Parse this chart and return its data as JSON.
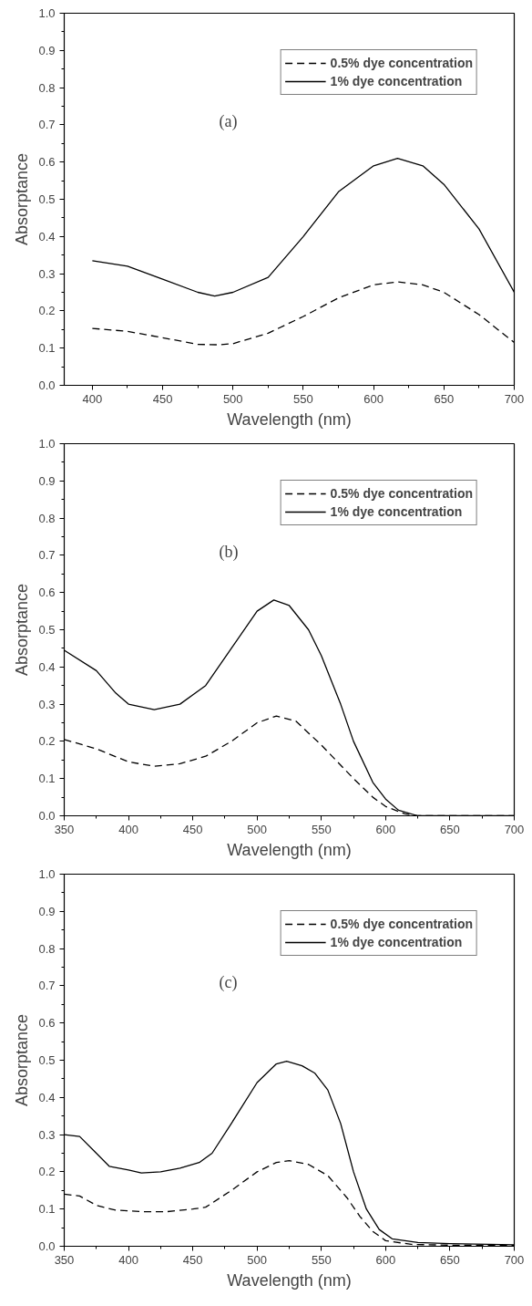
{
  "chart_data": [
    {
      "type": "line",
      "xlabel": "Wavelength (nm)",
      "ylabel": "Absorptance",
      "annotations": [
        "(a)"
      ],
      "legend": "top right",
      "grid": false,
      "xlim": [
        380,
        700
      ],
      "xticks": [
        400,
        {
          "value": 425,
          "label": null
        },
        450,
        {
          "value": 475,
          "label": null
        },
        500,
        {
          "value": 525,
          "label": null
        },
        550,
        {
          "value": 575,
          "label": null
        },
        600,
        {
          "value": 625,
          "label": null
        },
        650,
        {
          "value": 675,
          "label": null
        },
        700
      ],
      "ylim": [
        0,
        1
      ],
      "yticks": [
        {
          "value": 0,
          "label": "0.0"
        },
        {
          "value": 0.05,
          "label": null
        },
        0.1,
        {
          "value": 0.15,
          "label": null
        },
        0.2,
        {
          "value": 0.25,
          "label": null
        },
        0.3,
        {
          "value": 0.35,
          "label": null
        },
        0.4,
        {
          "value": 0.45,
          "label": null
        },
        0.5,
        {
          "value": 0.55,
          "label": null
        },
        0.6,
        {
          "value": 0.65,
          "label": null
        },
        0.7,
        {
          "value": 0.75,
          "label": null
        },
        0.8,
        {
          "value": 0.85,
          "label": null
        },
        0.9,
        {
          "value": 0.95,
          "label": null
        },
        {
          "value": 1,
          "label": "1.0"
        }
      ],
      "series": [
        {
          "name": "0.5% dye concentration",
          "color": "#000000",
          "line_style": "dashed",
          "x": [
            400,
            425,
            450,
            475,
            490,
            500,
            525,
            550,
            575,
            600,
            617,
            635,
            650,
            675,
            700
          ],
          "values": [
            0.153,
            0.145,
            0.128,
            0.11,
            0.109,
            0.112,
            0.14,
            0.185,
            0.235,
            0.27,
            0.278,
            0.27,
            0.25,
            0.19,
            0.115
          ]
        },
        {
          "name": "1% dye concentration",
          "color": "#000000",
          "line_style": "solid",
          "x": [
            400,
            425,
            450,
            475,
            487,
            500,
            525,
            550,
            575,
            600,
            617,
            635,
            650,
            675,
            700
          ],
          "values": [
            0.335,
            0.32,
            0.285,
            0.25,
            0.24,
            0.25,
            0.29,
            0.4,
            0.52,
            0.59,
            0.61,
            0.59,
            0.54,
            0.42,
            0.25
          ]
        }
      ]
    },
    {
      "type": "line",
      "xlabel": "Wavelength (nm)",
      "ylabel": "Absorptance",
      "annotations": [
        "(b)"
      ],
      "legend": "top right",
      "grid": false,
      "xlim": [
        350,
        700
      ],
      "xticks": [
        350,
        {
          "value": 375,
          "label": null
        },
        400,
        {
          "value": 425,
          "label": null
        },
        450,
        {
          "value": 475,
          "label": null
        },
        500,
        {
          "value": 525,
          "label": null
        },
        550,
        {
          "value": 575,
          "label": null
        },
        600,
        {
          "value": 625,
          "label": null
        },
        650,
        {
          "value": 675,
          "label": null
        },
        700
      ],
      "ylim": [
        0,
        1
      ],
      "yticks": [
        {
          "value": 0,
          "label": "0.0"
        },
        {
          "value": 0.05,
          "label": null
        },
        0.1,
        {
          "value": 0.15,
          "label": null
        },
        0.2,
        {
          "value": 0.25,
          "label": null
        },
        0.3,
        {
          "value": 0.35,
          "label": null
        },
        0.4,
        {
          "value": 0.45,
          "label": null
        },
        0.5,
        {
          "value": 0.55,
          "label": null
        },
        0.6,
        {
          "value": 0.65,
          "label": null
        },
        0.7,
        {
          "value": 0.75,
          "label": null
        },
        0.8,
        {
          "value": 0.85,
          "label": null
        },
        0.9,
        {
          "value": 0.95,
          "label": null
        },
        {
          "value": 1,
          "label": "1.0"
        }
      ],
      "series": [
        {
          "name": "0.5% dye concentration",
          "color": "#000000",
          "line_style": "dashed",
          "x": [
            350,
            375,
            400,
            420,
            440,
            460,
            480,
            500,
            515,
            530,
            550,
            575,
            590,
            600,
            615,
            625,
            700
          ],
          "values": [
            0.205,
            0.18,
            0.145,
            0.133,
            0.14,
            0.16,
            0.2,
            0.25,
            0.268,
            0.255,
            0.19,
            0.1,
            0.05,
            0.025,
            0.005,
            0.0,
            0.0
          ]
        },
        {
          "name": "1% dye concentration",
          "color": "#000000",
          "line_style": "solid",
          "x": [
            350,
            375,
            390,
            400,
            420,
            440,
            460,
            480,
            500,
            513,
            525,
            540,
            550,
            565,
            575,
            590,
            600,
            610,
            625,
            650,
            700
          ],
          "values": [
            0.445,
            0.39,
            0.33,
            0.3,
            0.285,
            0.3,
            0.35,
            0.45,
            0.55,
            0.58,
            0.565,
            0.5,
            0.43,
            0.3,
            0.2,
            0.09,
            0.045,
            0.015,
            0.0,
            0.0,
            0.0
          ]
        }
      ]
    },
    {
      "type": "line",
      "xlabel": "Wavelength (nm)",
      "ylabel": "Absorptance",
      "annotations": [
        "(c)"
      ],
      "legend": "top right",
      "grid": false,
      "xlim": [
        350,
        700
      ],
      "xticks": [
        350,
        {
          "value": 375,
          "label": null
        },
        400,
        {
          "value": 425,
          "label": null
        },
        450,
        {
          "value": 475,
          "label": null
        },
        500,
        {
          "value": 525,
          "label": null
        },
        550,
        {
          "value": 575,
          "label": null
        },
        600,
        {
          "value": 625,
          "label": null
        },
        650,
        {
          "value": 675,
          "label": null
        },
        700
      ],
      "ylim": [
        0,
        1
      ],
      "yticks": [
        {
          "value": 0,
          "label": "0.0"
        },
        {
          "value": 0.05,
          "label": null
        },
        0.1,
        {
          "value": 0.15,
          "label": null
        },
        0.2,
        {
          "value": 0.25,
          "label": null
        },
        0.3,
        {
          "value": 0.35,
          "label": null
        },
        0.4,
        {
          "value": 0.45,
          "label": null
        },
        0.5,
        {
          "value": 0.55,
          "label": null
        },
        0.6,
        {
          "value": 0.65,
          "label": null
        },
        0.7,
        {
          "value": 0.75,
          "label": null
        },
        0.8,
        {
          "value": 0.85,
          "label": null
        },
        0.9,
        {
          "value": 0.95,
          "label": null
        },
        {
          "value": 1,
          "label": "1.0"
        }
      ],
      "series": [
        {
          "name": "0.5% dye concentration",
          "color": "#000000",
          "line_style": "dashed",
          "x": [
            350,
            362,
            375,
            390,
            410,
            430,
            450,
            460,
            480,
            500,
            515,
            525,
            540,
            555,
            570,
            580,
            590,
            600,
            620,
            650,
            700
          ],
          "values": [
            0.14,
            0.135,
            0.11,
            0.097,
            0.093,
            0.093,
            0.1,
            0.105,
            0.15,
            0.2,
            0.225,
            0.23,
            0.22,
            0.19,
            0.13,
            0.08,
            0.04,
            0.015,
            0.005,
            0.003,
            0.002
          ]
        },
        {
          "name": "1% dye concentration",
          "color": "#000000",
          "line_style": "solid",
          "x": [
            350,
            362,
            375,
            385,
            400,
            410,
            425,
            440,
            455,
            465,
            480,
            500,
            515,
            523,
            535,
            545,
            555,
            565,
            575,
            585,
            595,
            605,
            625,
            650,
            700
          ],
          "values": [
            0.3,
            0.295,
            0.25,
            0.215,
            0.205,
            0.197,
            0.2,
            0.21,
            0.225,
            0.25,
            0.33,
            0.44,
            0.49,
            0.497,
            0.485,
            0.465,
            0.42,
            0.33,
            0.2,
            0.1,
            0.045,
            0.02,
            0.01,
            0.007,
            0.004
          ]
        }
      ]
    }
  ]
}
